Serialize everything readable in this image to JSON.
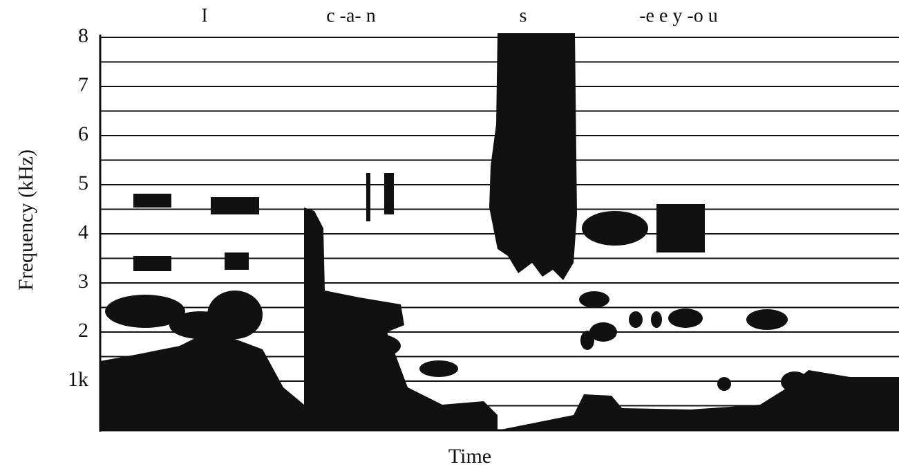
{
  "chart_data": {
    "type": "spectrogram",
    "words": [
      "I",
      "c -a- n",
      "s",
      "-e e y -o u"
    ],
    "xlabel": "Time",
    "ylabel": "Frequency (kHz)",
    "ylim": [
      0,
      8
    ],
    "yticks": [
      {
        "value": 1,
        "label": "1k"
      },
      2,
      3,
      4,
      5,
      6,
      7,
      8
    ],
    "yminor": [
      0.5,
      1.5,
      2.5,
      3.5,
      4.5,
      5.5,
      6.5,
      7.5
    ],
    "grid": true,
    "color": "#111111"
  }
}
